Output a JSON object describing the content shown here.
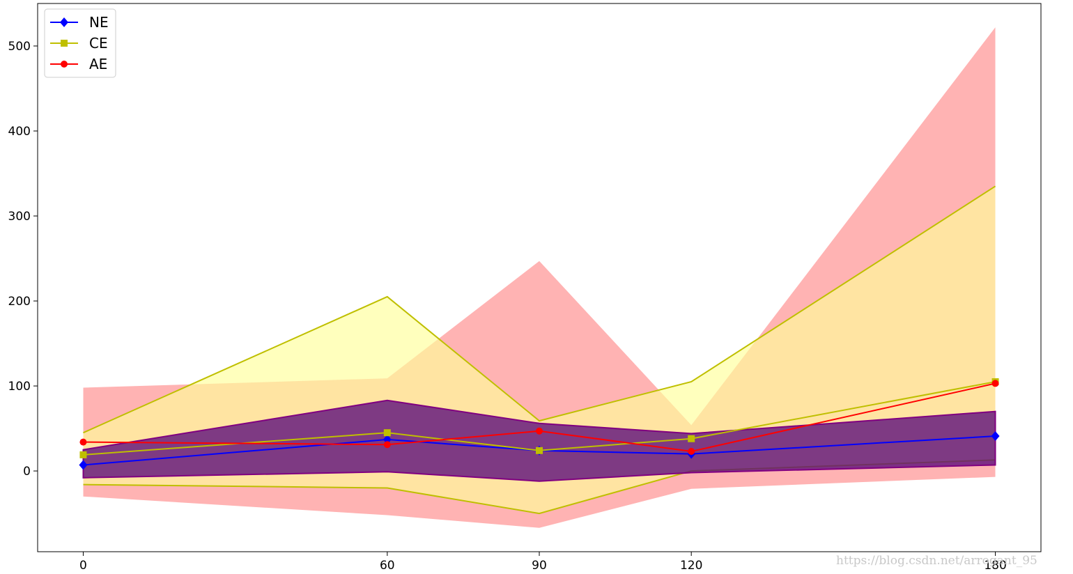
{
  "chart_data": {
    "type": "line",
    "x": [
      0,
      60,
      90,
      120,
      180
    ],
    "xticks": [
      "0",
      "60",
      "90",
      "120",
      "180"
    ],
    "yticks": [
      "0",
      "100",
      "200",
      "300",
      "400",
      "500"
    ],
    "ytick_values": [
      0,
      100,
      200,
      300,
      400,
      500
    ],
    "xlim": [
      -9,
      189
    ],
    "ylim": [
      -95,
      550
    ],
    "grid": false,
    "legend_position": "top-left",
    "bands": [
      {
        "series": "AE",
        "color": "#ffb3b3",
        "lower": [
          -30,
          -52,
          -67,
          -21,
          -7
        ],
        "upper": [
          98,
          109,
          247,
          54,
          522
        ]
      },
      {
        "series": "CE",
        "color": "#ffff99",
        "opacity": 0.65,
        "lower": [
          -16,
          -20,
          -50,
          0,
          13
        ],
        "upper": [
          45,
          205,
          59,
          105,
          335
        ]
      },
      {
        "series": "NE",
        "color": "#5a0a7a",
        "opacity": 0.78,
        "lower": [
          -8,
          -1,
          -12,
          -2,
          7
        ],
        "upper": [
          25,
          83,
          56,
          44,
          70
        ]
      }
    ],
    "series": [
      {
        "name": "NE",
        "color": "#0000ff",
        "marker": "diamond",
        "values": [
          7,
          37,
          24,
          20,
          41
        ]
      },
      {
        "name": "CE",
        "color": "#bfbf00",
        "marker": "square",
        "values": [
          19,
          45,
          24,
          38,
          105
        ]
      },
      {
        "name": "AE",
        "color": "#ff0000",
        "marker": "circle",
        "values": [
          34,
          31,
          47,
          23,
          103
        ]
      }
    ]
  },
  "watermark": "https://blog.csdn.net/arrogant_95"
}
